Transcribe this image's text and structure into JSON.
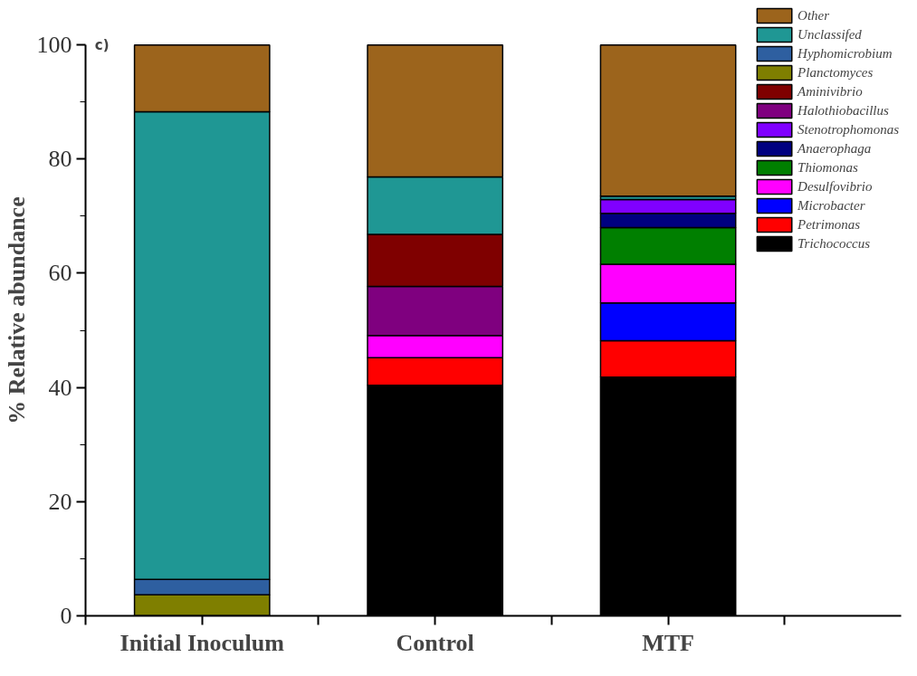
{
  "chart_data": {
    "type": "bar",
    "stacked": true,
    "ylabel": "% Relative abundance",
    "categories": [
      "Initial Inoculum",
      "Control",
      "MTF"
    ],
    "ylim": [
      0,
      100
    ],
    "yticks": [
      0,
      20,
      40,
      60,
      80,
      100
    ],
    "grid": false,
    "legend": "top right",
    "annotations": [
      "c)"
    ],
    "series": [
      {
        "name": "Trichococcus",
        "color": "#000000",
        "values": [
          null,
          40.4,
          41.8
        ]
      },
      {
        "name": "Petrimonas",
        "color": "#ff0000",
        "values": [
          null,
          4.8,
          6.4
        ]
      },
      {
        "name": "Microbacter",
        "color": "#0000ff",
        "values": [
          null,
          null,
          6.6
        ]
      },
      {
        "name": "Desulfovibrio",
        "color": "#ff00ff",
        "values": [
          null,
          3.9,
          6.8
        ]
      },
      {
        "name": "Thiomonas",
        "color": "#007f00",
        "values": [
          null,
          null,
          6.4
        ]
      },
      {
        "name": "Anaerophaga",
        "color": "#000080",
        "values": [
          null,
          null,
          2.5
        ]
      },
      {
        "name": "Stenotrophomonas",
        "color": "#8000ff",
        "values": [
          null,
          null,
          2.4
        ]
      },
      {
        "name": "Halothiobacillus",
        "color": "#7f007f",
        "values": [
          null,
          8.6,
          null
        ]
      },
      {
        "name": "Aminivibrio",
        "color": "#7f0000",
        "values": [
          null,
          9.1,
          null
        ]
      },
      {
        "name": "Planctomyces",
        "color": "#7f7f00",
        "values": [
          3.7,
          null,
          null
        ]
      },
      {
        "name": "Hyphomicrobium",
        "color": "#2e5fa0",
        "values": [
          2.7,
          null,
          null
        ]
      },
      {
        "name": "Unclassifed",
        "color": "#1f9794",
        "values": [
          81.9,
          10.1,
          0.6
        ]
      },
      {
        "name": "Other",
        "color": "#9c641c",
        "values": [
          11.7,
          23.1,
          26.5
        ]
      }
    ]
  }
}
